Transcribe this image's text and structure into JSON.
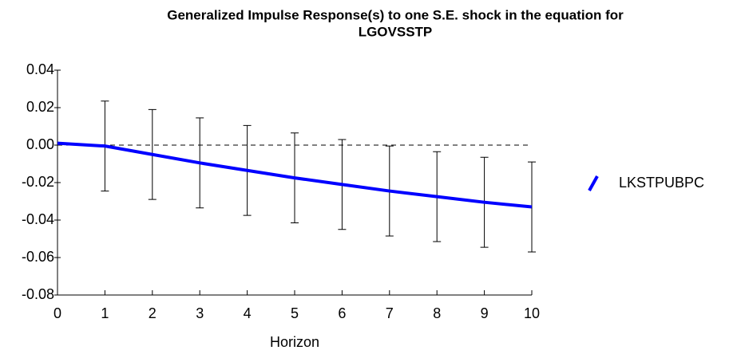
{
  "chart_data": {
    "type": "line",
    "title": [
      "Generalized Impulse Response(s) to one S.E. shock in the equation for",
      "LGOVSSTP"
    ],
    "x_label": "Horizon",
    "x": [
      0,
      1,
      2,
      3,
      4,
      5,
      6,
      7,
      8,
      9,
      10
    ],
    "series": [
      {
        "name": "LKSTPUBPC",
        "color": "#0000ff",
        "values": [
          0.001,
          -0.0005,
          -0.005,
          -0.0095,
          -0.0135,
          -0.0175,
          -0.021,
          -0.0245,
          -0.0275,
          -0.0305,
          -0.033
        ],
        "errors": [
          null,
          0.024,
          0.024,
          0.024,
          0.024,
          0.024,
          0.024,
          0.024,
          0.024,
          0.024,
          0.024
        ]
      }
    ],
    "xlim": [
      0,
      10
    ],
    "xticks": [
      0,
      1,
      2,
      3,
      4,
      5,
      6,
      7,
      8,
      9,
      10
    ],
    "ylim": [
      -0.08,
      0.04
    ],
    "yticks": [
      -0.08,
      -0.06,
      -0.04,
      -0.02,
      {
        "value": 0,
        "label": "0.00"
      },
      0.02,
      0.04
    ],
    "reference_line": 0,
    "legend": "right"
  }
}
